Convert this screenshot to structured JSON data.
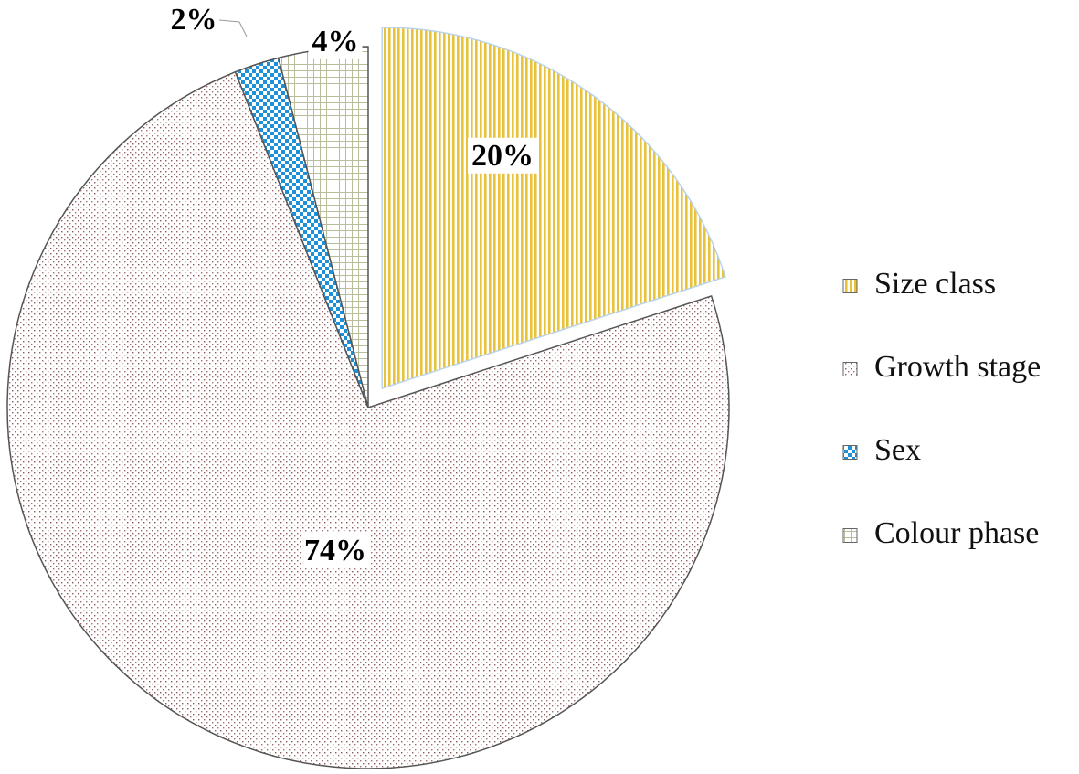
{
  "chart_data": {
    "type": "pie",
    "title": "",
    "slices": [
      {
        "name": "Size class",
        "value": 20,
        "label": "20%",
        "color": "#e8c23a",
        "pattern": "vertical-stripes",
        "exploded": true
      },
      {
        "name": "Growth stage",
        "value": 74,
        "label": "74%",
        "color": "#8a5a5a",
        "pattern": "fine-dots",
        "exploded": false
      },
      {
        "name": "Sex",
        "value": 2,
        "label": "2%",
        "color": "#1e90d8",
        "pattern": "checkerboard",
        "exploded": true
      },
      {
        "name": "Colour phase",
        "value": 4,
        "label": "4%",
        "color": "#9aa07a",
        "pattern": "small-grid",
        "exploded": true
      }
    ],
    "start_angle_deg": 0,
    "direction": "clockwise",
    "legend": {
      "position": "right",
      "entries": [
        "Size class",
        "Growth stage",
        "Sex",
        "Colour phase"
      ]
    }
  }
}
